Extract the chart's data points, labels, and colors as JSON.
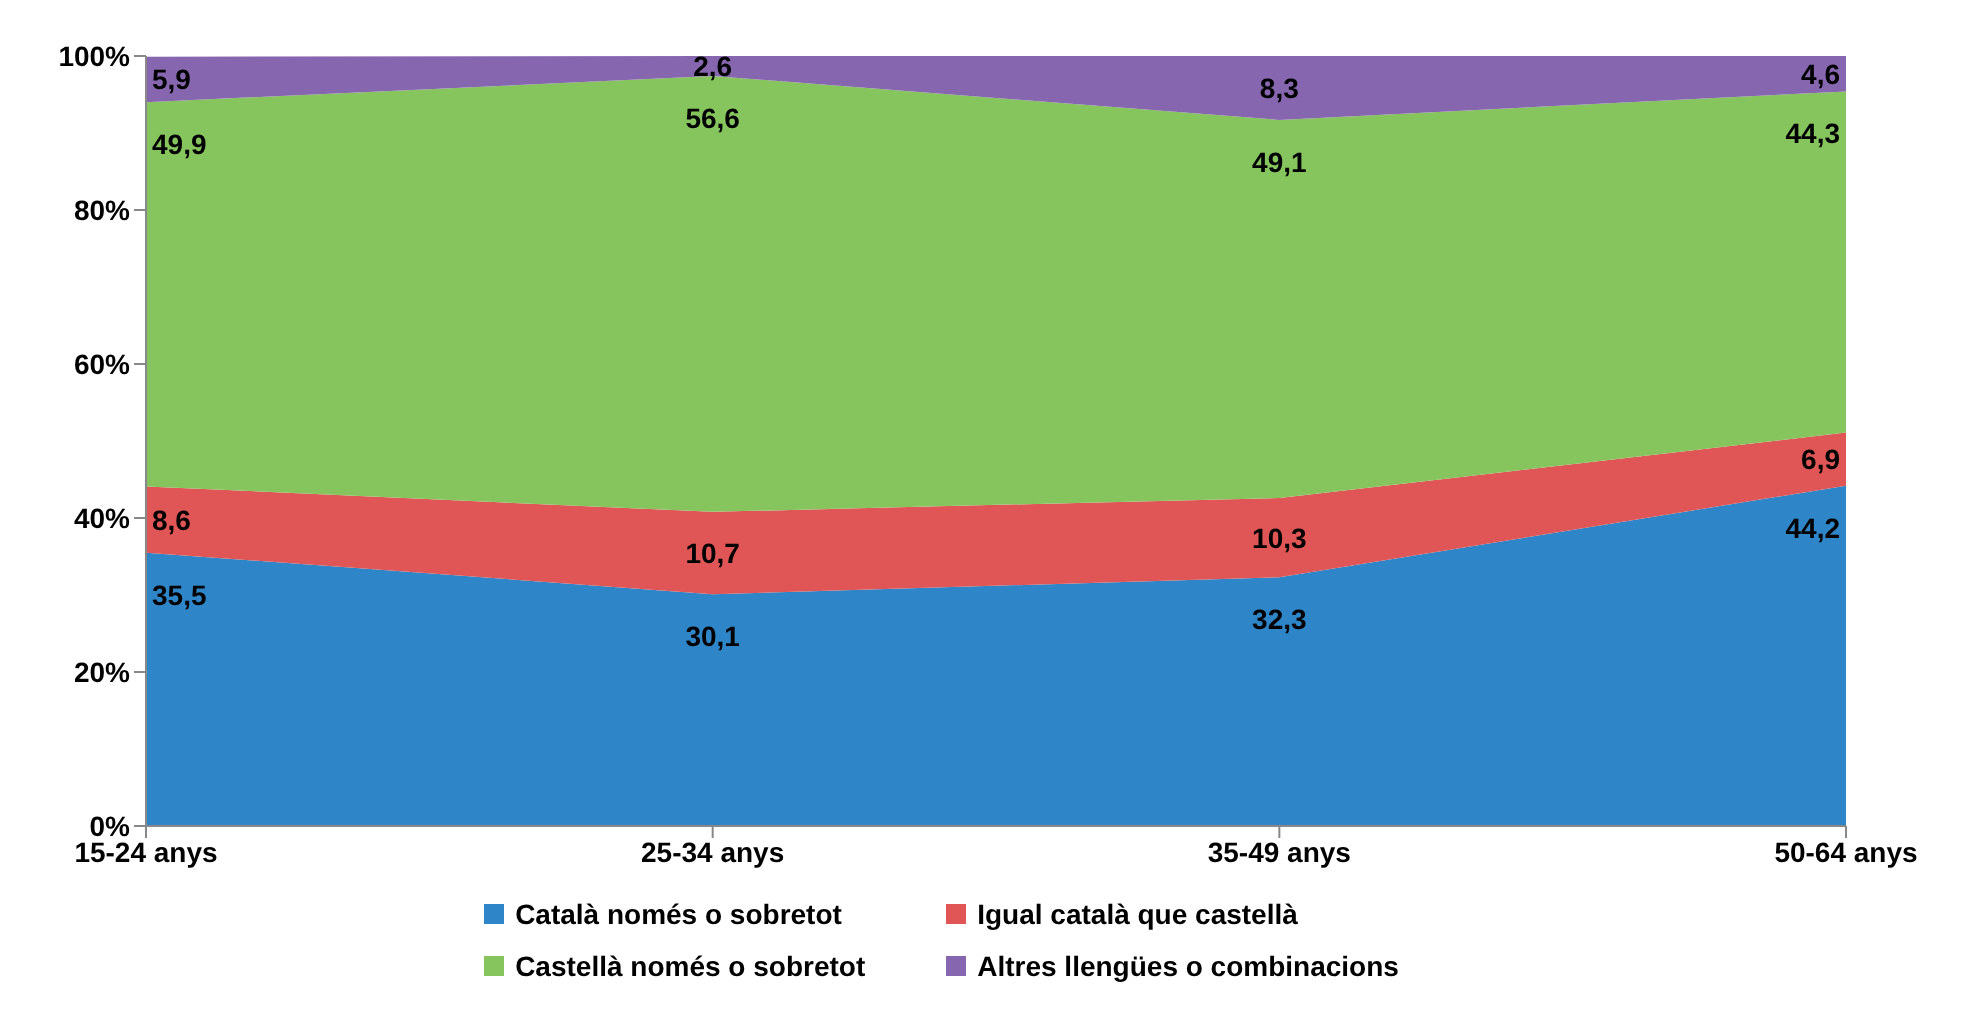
{
  "chart_data": {
    "type": "area",
    "stacked": true,
    "categories": [
      "15-24 anys",
      "25-34 anys",
      "35-49 anys",
      "50-64 anys"
    ],
    "series": [
      {
        "name": "Català només o sobretot",
        "color": "#2e86c8",
        "values": [
          35.5,
          30.1,
          32.3,
          44.2
        ],
        "value_labels": [
          "35,5",
          "30,1",
          "32,3",
          "44,2"
        ]
      },
      {
        "name": "Igual català que castellà",
        "color": "#e05656",
        "values": [
          8.6,
          10.7,
          10.3,
          6.9
        ],
        "value_labels": [
          "8,6",
          "10,7",
          "10,3",
          "6,9"
        ]
      },
      {
        "name": "Castellà només o sobretot",
        "color": "#86c45e",
        "values": [
          49.9,
          56.6,
          49.1,
          44.3
        ],
        "value_labels": [
          "49,9",
          "56,6",
          "49,1",
          "44,3"
        ]
      },
      {
        "name": "Altres llengües o combinacions",
        "color": "#8766b0",
        "values": [
          5.9,
          2.6,
          8.3,
          4.6
        ],
        "value_labels": [
          "5,9",
          "2,6",
          "8,3",
          "4,6"
        ]
      }
    ],
    "ylim": [
      0,
      100
    ],
    "yticks": [
      {
        "value": 0,
        "label": "0%"
      },
      {
        "value": 20,
        "label": "20%"
      },
      {
        "value": 40,
        "label": "40%"
      },
      {
        "value": 60,
        "label": "60%"
      },
      {
        "value": 80,
        "label": "80%"
      },
      {
        "value": 100,
        "label": "100%"
      }
    ],
    "legend": "bottom"
  }
}
